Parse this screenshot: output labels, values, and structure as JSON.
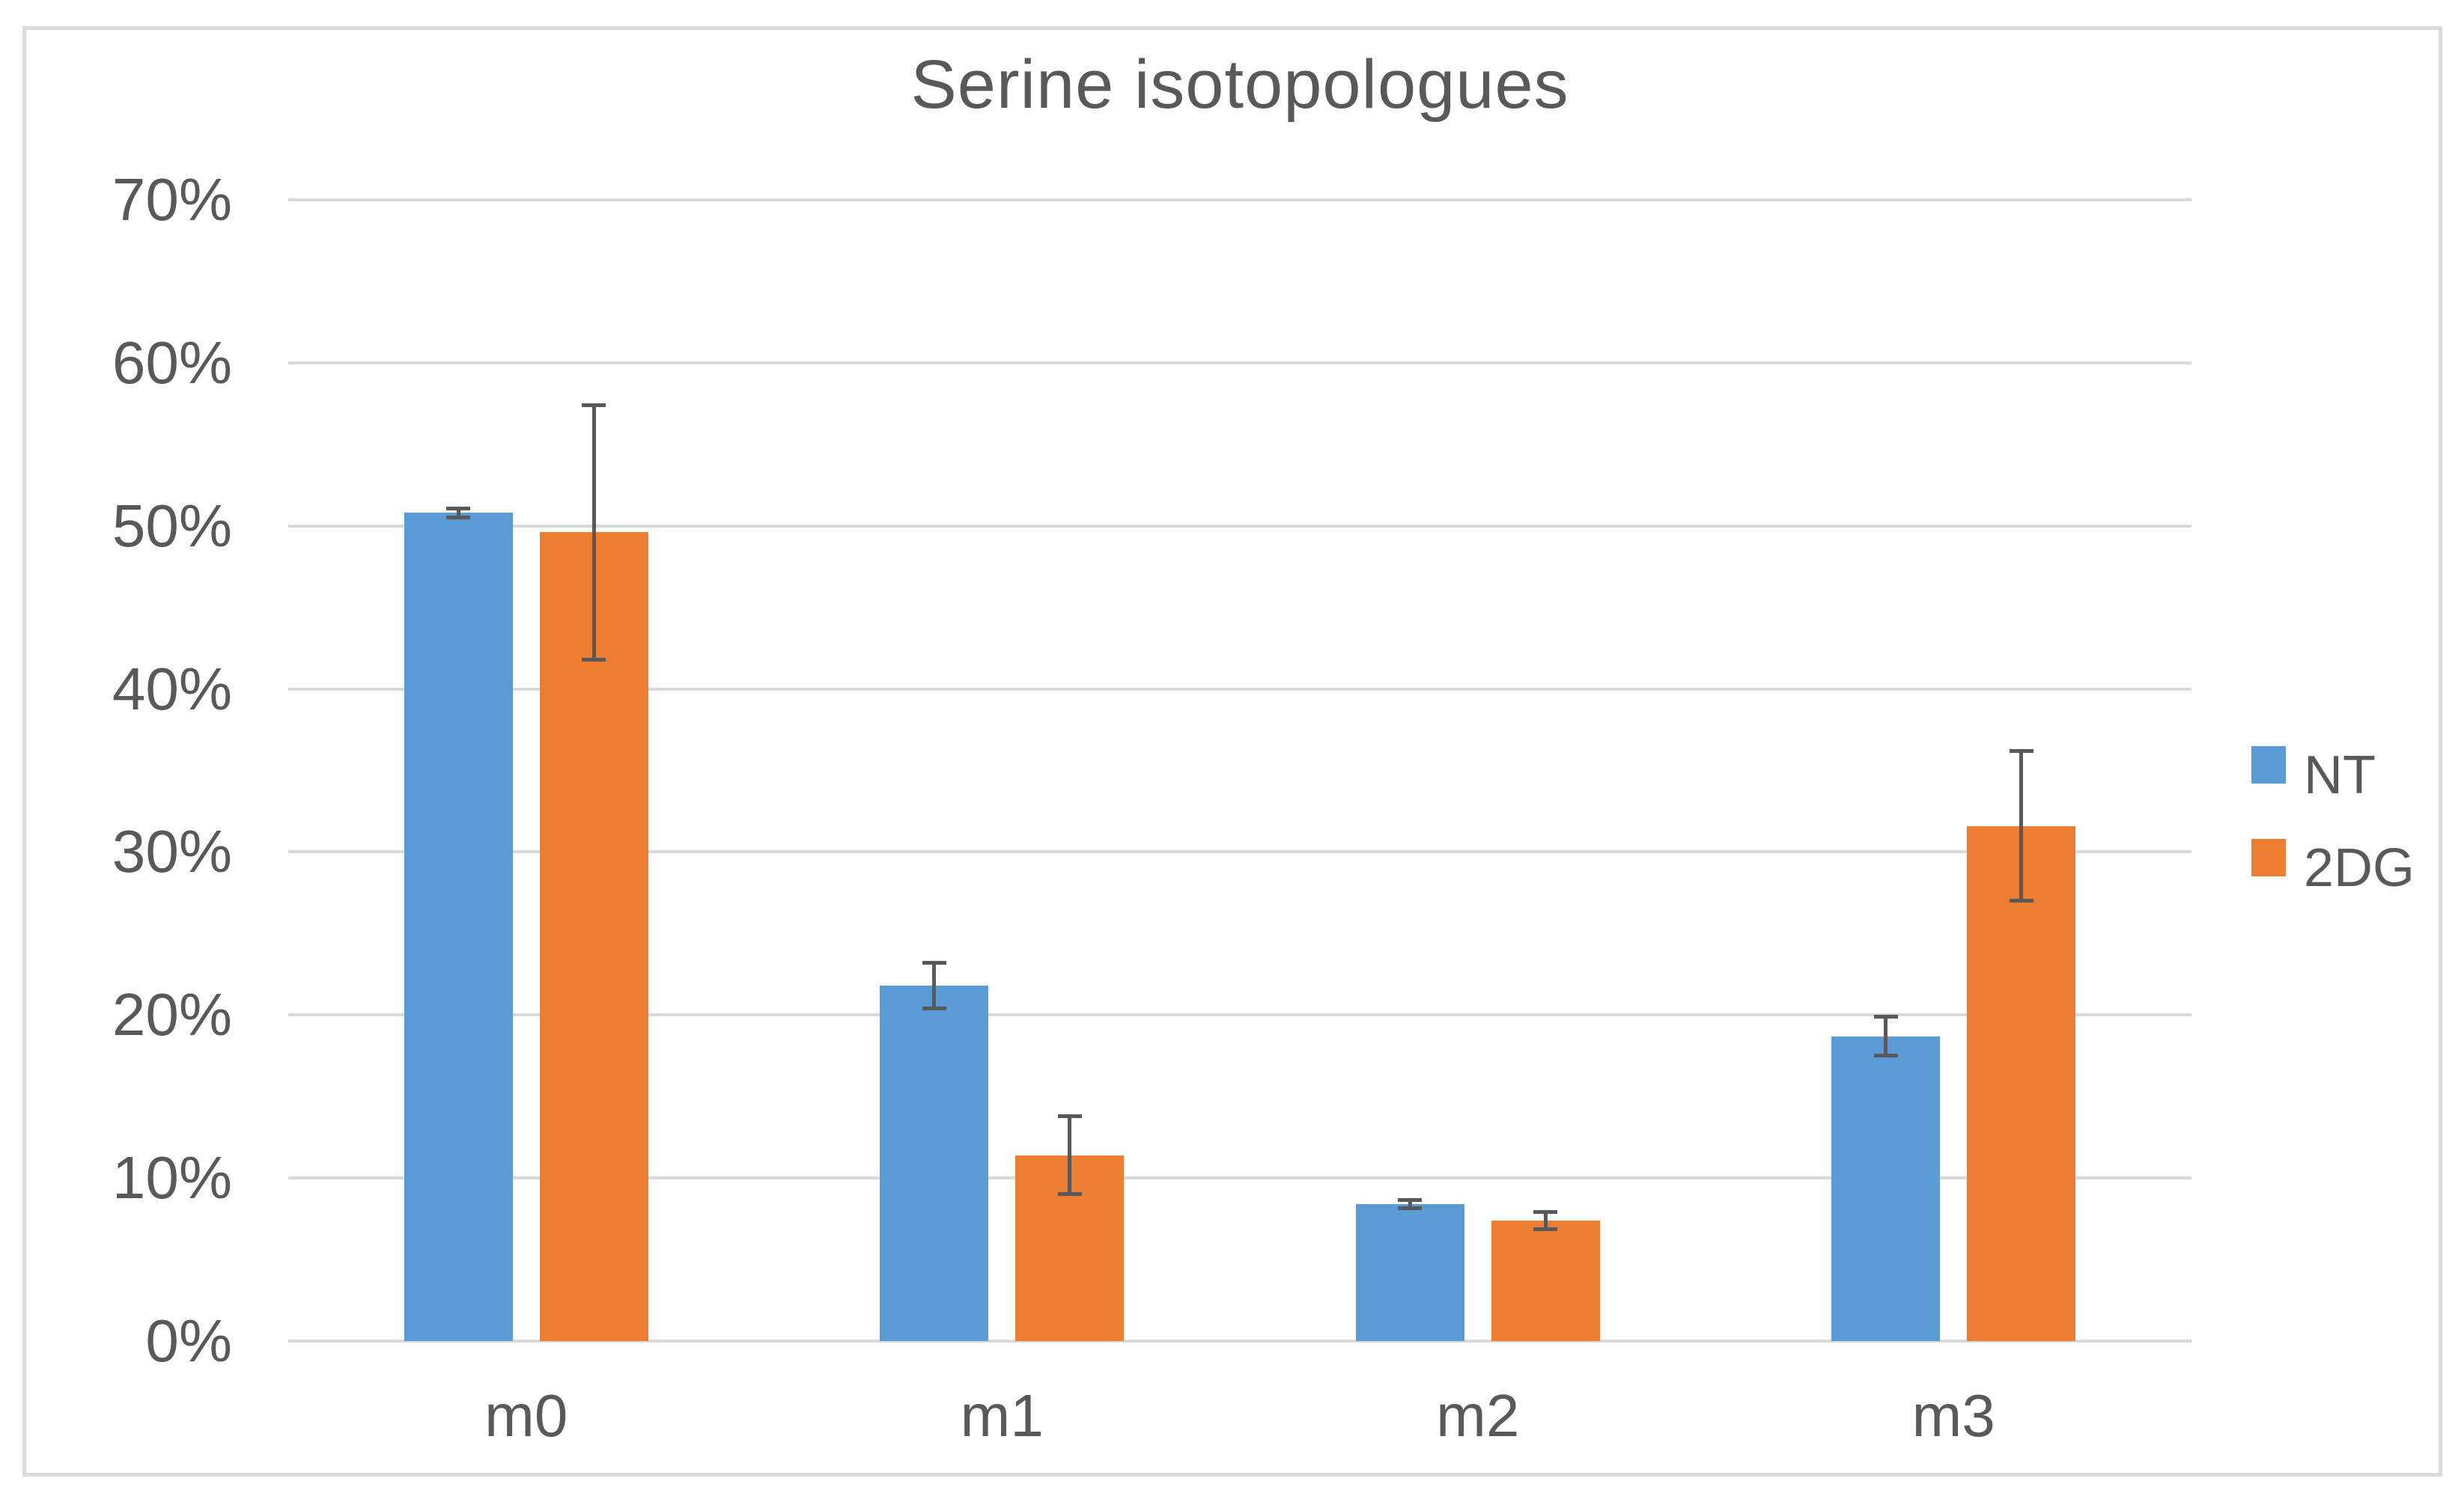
{
  "title": "Serine isotopologues",
  "page": {
    "background": "#FFFFFF",
    "frame_border_color": "#DCDCDC"
  },
  "chart_data": {
    "type": "bar",
    "title": "Serine isotopologues",
    "categories": [
      "m0",
      "m1",
      "m2",
      "m3"
    ],
    "series": [
      {
        "name": "NT",
        "color": "#5B9BD5",
        "values": [
          50.8,
          21.8,
          8.4,
          18.7
        ],
        "error_bars": [
          0.4,
          1.5,
          0.35,
          1.3
        ]
      },
      {
        "name": "2DG",
        "color": "#ED7D31",
        "values": [
          49.6,
          11.4,
          7.4,
          31.6
        ],
        "error_bars": [
          7.9,
          2.5,
          0.65,
          4.7
        ]
      }
    ],
    "xlabel": "",
    "ylabel": "",
    "ylim": [
      0,
      70
    ],
    "y_ticks": [
      {
        "value": 0,
        "label": "0%"
      },
      {
        "value": 10,
        "label": "10%"
      },
      {
        "value": 20,
        "label": "20%"
      },
      {
        "value": 30,
        "label": "30%"
      },
      {
        "value": 40,
        "label": "40%"
      },
      {
        "value": 50,
        "label": "50%"
      },
      {
        "value": 60,
        "label": "60%"
      },
      {
        "value": 70,
        "label": "70%"
      }
    ],
    "grid": true,
    "gridline_color": "#D9D9D9",
    "error_bar_color": "#595959",
    "text_color": "#595959",
    "legend_position": "right",
    "legend": [
      "NT",
      "2DG"
    ]
  }
}
